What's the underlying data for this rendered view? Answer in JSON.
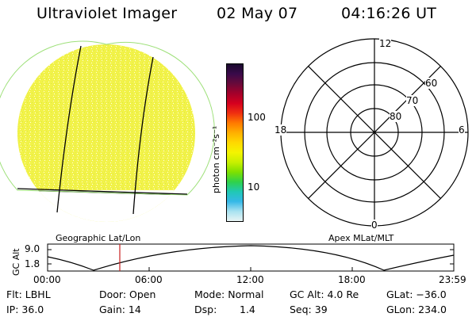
{
  "header": {
    "instrument": "Ultraviolet Imager",
    "date": "02 May 07",
    "time": "04:16:26 UT"
  },
  "colorbar": {
    "label": "photon cm⁻²s⁻¹",
    "ticks": [
      "100",
      "10"
    ],
    "colors": [
      "#1a0a2e",
      "#3a0a4a",
      "#6a0a3a",
      "#a5002a",
      "#d6001e",
      "#f03010",
      "#ff7a00",
      "#ffb000",
      "#ffd900",
      "#f4f400",
      "#c8f000",
      "#7ee000",
      "#2fd24a",
      "#20c8b4",
      "#35b8e8",
      "#a8e2f0",
      "#e8f4f4"
    ]
  },
  "earth_map": {
    "disk_color": "#f4f250",
    "caption": "Geographic Lat/Lon"
  },
  "polar_plot": {
    "caption": "Apex MLat/MLT",
    "mlt_labels": {
      "top": "12",
      "right": "6",
      "bottom": "0",
      "left": "18"
    },
    "lat_labels": [
      "60",
      "70",
      "80"
    ]
  },
  "altitude_plot": {
    "y_title": "GC Alt",
    "y_ticks": [
      "9.0",
      "1.8"
    ],
    "x_ticks": [
      "00:00",
      "06:00",
      "12:00",
      "18:00",
      "23:59"
    ],
    "cursor_color": "#c81e1e"
  },
  "status": {
    "filter": "Flt: LBHL",
    "ip": "IP: 36.0",
    "door": "Door: Open",
    "gain": "Gain: 14",
    "mode": "Mode: Normal",
    "dsp": "Dsp:",
    "dsp_value": "1.4",
    "gc_alt": "GC Alt: 4.0 Re",
    "seq": "Seq: 39",
    "glat": "GLat: −36.0",
    "glon": "GLon: 234.0"
  }
}
